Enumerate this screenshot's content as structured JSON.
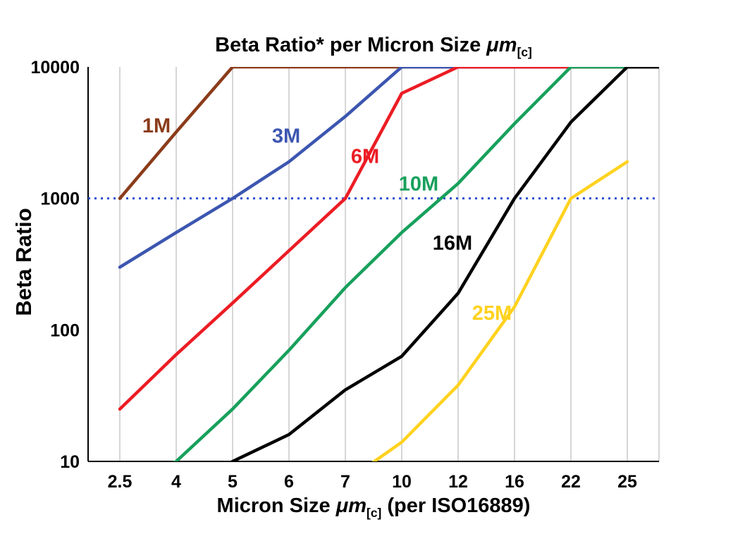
{
  "title": {
    "main": "Beta Ratio* per Micron Size ",
    "mu": "μm",
    "sub": "[c]"
  },
  "y_axis_label": "Beta Ratio",
  "x_axis_label": {
    "main": "Micron Size ",
    "mu": "μm",
    "sub": "[c]",
    "rest": " (per ISO16889)"
  },
  "chart_data": {
    "type": "line",
    "x_categories": [
      "2.5",
      "4",
      "5",
      "6",
      "7",
      "10",
      "12",
      "16",
      "22",
      "25"
    ],
    "y_ticks": [
      "10",
      "100",
      "1000",
      "10000"
    ],
    "y_scale": "log",
    "ylim": [
      10,
      10000
    ],
    "grid": "vertical-only",
    "legend": "inline-colored-labels",
    "colors": {
      "grid": "#c9c9c9",
      "axis": "#000000",
      "reference": "#2a4fd0"
    },
    "reference_line": {
      "value": 1000,
      "color": "#2a4fd0",
      "style": "dotted"
    },
    "series": [
      {
        "name": "1M",
        "color": "#8b3b1a",
        "values": [
          1000,
          3200,
          10000,
          10000,
          10000,
          10000,
          10000,
          10000,
          10000,
          10000
        ],
        "label": {
          "text": "1M",
          "index": 0.65,
          "value": 3600
        }
      },
      {
        "name": "3M",
        "color": "#3c56b0",
        "values": [
          300,
          550,
          1000,
          1900,
          4200,
          10000,
          10000,
          10000,
          10000,
          10000
        ],
        "label": {
          "text": "3M",
          "index": 2.95,
          "value": 3000
        }
      },
      {
        "name": "6M",
        "color": "#ec1c24",
        "values": [
          25,
          65,
          160,
          400,
          1000,
          6300,
          10000,
          10000,
          10000,
          10000
        ],
        "label": {
          "text": "6M",
          "index": 4.35,
          "value": 2100
        }
      },
      {
        "name": "10M",
        "color": "#17a05c",
        "values": [
          6,
          10,
          25,
          70,
          210,
          550,
          1300,
          3700,
          10000,
          10000
        ],
        "label": {
          "text": "10M",
          "index": 5.3,
          "value": 1300
        }
      },
      {
        "name": "16M",
        "color": "#000000",
        "values": [
          null,
          5,
          10,
          16,
          35,
          63,
          190,
          1000,
          3800,
          10000
        ],
        "label": {
          "text": "16M",
          "index": 5.9,
          "value": 460
        }
      },
      {
        "name": "25M",
        "color": "#ffd21f",
        "values": [
          null,
          null,
          null,
          null,
          7,
          14,
          38,
          150,
          1000,
          1900
        ],
        "label": {
          "text": "25M",
          "index": 6.6,
          "value": 135
        }
      }
    ]
  }
}
